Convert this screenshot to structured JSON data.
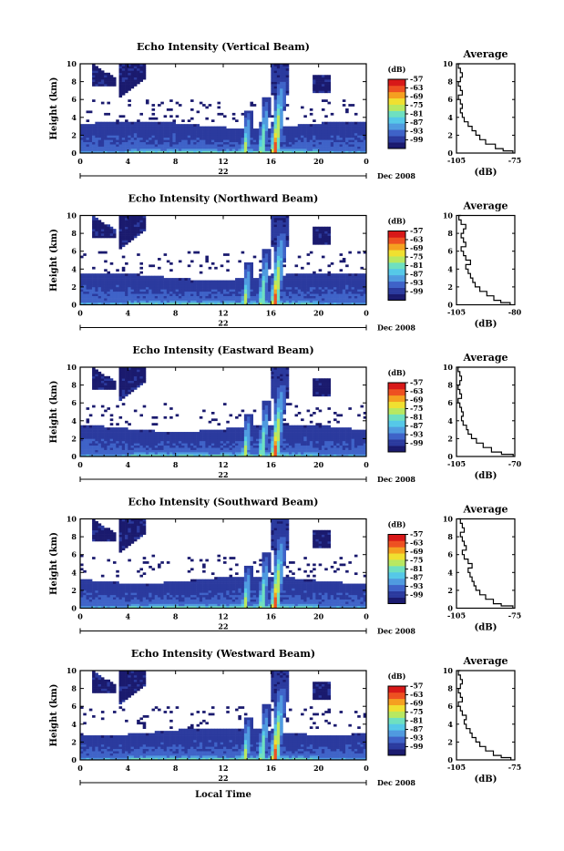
{
  "chart_data": [
    {
      "type": "heatmap",
      "title": "Echo Intensity (Vertical Beam)",
      "ylabel": "Height (km)",
      "ylim": [
        0,
        10
      ],
      "xlim": [
        0,
        24
      ],
      "x_ticks": [
        "0",
        "4",
        "8",
        "12",
        "16",
        "20",
        "0"
      ],
      "y_ticks": [
        "0",
        "2",
        "4",
        "6",
        "8",
        "10"
      ],
      "date_label": "22",
      "month_label": "Dec 2008",
      "colorbar": {
        "unit": "(dB)",
        "range": [
          -105,
          -57
        ],
        "ticks": [
          "-57",
          "-63",
          "-69",
          "-75",
          "-81",
          "-87",
          "-93",
          "-99"
        ]
      },
      "profile": {
        "title": "Average",
        "xlabel": "(dB)",
        "xticks": [
          "-105",
          "-75"
        ],
        "xlim": [
          -105,
          -75
        ],
        "yticks": [
          "0",
          "2",
          "4",
          "6",
          "8",
          "10"
        ],
        "heights": [
          0,
          0.25,
          0.5,
          1,
          1.5,
          2,
          2.5,
          3,
          3.5,
          4,
          4.5,
          5,
          5.5,
          6,
          6.5,
          7,
          7.5,
          8,
          8.5,
          9,
          9.5,
          10
        ],
        "values": [
          -76,
          -81,
          -85,
          -90,
          -93,
          -95,
          -97,
          -99,
          -101,
          -102,
          -103,
          -102,
          -103,
          -104,
          -102,
          -103,
          -104,
          -103,
          -102,
          -103,
          -104,
          -103
        ]
      }
    },
    {
      "type": "heatmap",
      "title": "Echo Intensity (Northward Beam)",
      "ylabel": "Height (km)",
      "ylim": [
        0,
        10
      ],
      "xlim": [
        0,
        24
      ],
      "x_ticks": [
        "0",
        "4",
        "8",
        "12",
        "16",
        "20",
        "0"
      ],
      "y_ticks": [
        "0",
        "2",
        "4",
        "6",
        "8",
        "10"
      ],
      "date_label": "22",
      "month_label": "Dec 2008",
      "colorbar": {
        "unit": "(dB)",
        "range": [
          -105,
          -57
        ],
        "ticks": [
          "-57",
          "-63",
          "-69",
          "-75",
          "-81",
          "-87",
          "-93",
          "-99"
        ]
      },
      "profile": {
        "title": "Average",
        "xlabel": "(dB)",
        "xticks": [
          "-105",
          "-80"
        ],
        "xlim": [
          -105,
          -80
        ],
        "yticks": [
          "0",
          "2",
          "4",
          "6",
          "8",
          "10"
        ],
        "heights": [
          0,
          0.25,
          0.5,
          1,
          1.5,
          2,
          2.5,
          3,
          3.5,
          4,
          4.5,
          5,
          5.5,
          6,
          6.5,
          7,
          7.5,
          8,
          8.5,
          9,
          9.5,
          10
        ],
        "values": [
          -82,
          -86,
          -89,
          -92,
          -95,
          -97,
          -98,
          -99,
          -100,
          -101,
          -99,
          -101,
          -102,
          -103,
          -101,
          -102,
          -103,
          -102,
          -101,
          -103,
          -104,
          -103
        ]
      }
    },
    {
      "type": "heatmap",
      "title": "Echo Intensity (Eastward Beam)",
      "ylabel": "Height (km)",
      "ylim": [
        0,
        10
      ],
      "xlim": [
        0,
        24
      ],
      "x_ticks": [
        "0",
        "4",
        "8",
        "12",
        "16",
        "20",
        "0"
      ],
      "y_ticks": [
        "0",
        "2",
        "4",
        "6",
        "8",
        "10"
      ],
      "date_label": "22",
      "month_label": "Dec 2008",
      "colorbar": {
        "unit": "(dB)",
        "range": [
          -105,
          -57
        ],
        "ticks": [
          "-57",
          "-63",
          "-69",
          "-75",
          "-81",
          "-87",
          "-93",
          "-99"
        ]
      },
      "profile": {
        "title": "Average",
        "xlabel": "(dB)",
        "xticks": [
          "-105",
          "-70"
        ],
        "xlim": [
          -105,
          -70
        ],
        "yticks": [
          "0",
          "2",
          "4",
          "6",
          "8",
          "10"
        ],
        "heights": [
          0,
          0.25,
          0.5,
          1,
          1.5,
          2,
          2.5,
          3,
          3.5,
          4,
          4.5,
          5,
          5.5,
          6,
          6.5,
          7,
          7.5,
          8,
          8.5,
          9,
          9.5,
          10
        ],
        "values": [
          -71,
          -78,
          -84,
          -89,
          -93,
          -96,
          -98,
          -99,
          -101,
          -102,
          -101,
          -102,
          -103,
          -104,
          -102,
          -103,
          -104,
          -103,
          -102,
          -103,
          -104,
          -103
        ]
      }
    },
    {
      "type": "heatmap",
      "title": "Echo Intensity (Southward Beam)",
      "ylabel": "Height (km)",
      "ylim": [
        0,
        10
      ],
      "xlim": [
        0,
        24
      ],
      "x_ticks": [
        "0",
        "4",
        "8",
        "12",
        "16",
        "20",
        "0"
      ],
      "y_ticks": [
        "0",
        "2",
        "4",
        "6",
        "8",
        "10"
      ],
      "date_label": "22",
      "month_label": "Dec 2008",
      "colorbar": {
        "unit": "(dB)",
        "range": [
          -105,
          -57
        ],
        "ticks": [
          "-57",
          "-63",
          "-69",
          "-75",
          "-81",
          "-87",
          "-93",
          "-99"
        ]
      },
      "profile": {
        "title": "Average",
        "xlabel": "(dB)",
        "xticks": [
          "-105",
          "-75"
        ],
        "xlim": [
          -105,
          -75
        ],
        "yticks": [
          "0",
          "2",
          "4",
          "6",
          "8",
          "10"
        ],
        "heights": [
          0,
          0.25,
          0.5,
          1,
          1.5,
          2,
          2.5,
          3,
          3.5,
          4,
          4.5,
          5,
          5.5,
          6,
          6.5,
          7,
          7.5,
          8,
          8.5,
          9,
          9.5,
          10
        ],
        "values": [
          -76,
          -82,
          -86,
          -90,
          -93,
          -95,
          -96,
          -97,
          -98,
          -99,
          -97,
          -99,
          -101,
          -102,
          -100,
          -101,
          -102,
          -103,
          -101,
          -102,
          -103,
          -104
        ]
      }
    },
    {
      "type": "heatmap",
      "title": "Echo Intensity (Westward Beam)",
      "ylabel": "Height (km)",
      "ylim": [
        0,
        10
      ],
      "xlim": [
        0,
        24
      ],
      "x_ticks": [
        "0",
        "4",
        "8",
        "12",
        "16",
        "20",
        "0"
      ],
      "y_ticks": [
        "0",
        "2",
        "4",
        "6",
        "8",
        "10"
      ],
      "date_label": "22",
      "month_label": "Dec 2008",
      "xlabel": "Local Time",
      "colorbar": {
        "unit": "(dB)",
        "range": [
          -105,
          -57
        ],
        "ticks": [
          "-57",
          "-63",
          "-69",
          "-75",
          "-81",
          "-87",
          "-93",
          "-99"
        ]
      },
      "profile": {
        "title": "Average",
        "xlabel": "(dB)",
        "xticks": [
          "-105",
          "-75"
        ],
        "xlim": [
          -105,
          -75
        ],
        "yticks": [
          "0",
          "2",
          "4",
          "6",
          "8",
          "10"
        ],
        "heights": [
          0,
          0.25,
          0.5,
          1,
          1.5,
          2,
          2.5,
          3,
          3.5,
          4,
          4.5,
          5,
          5.5,
          6,
          6.5,
          7,
          7.5,
          8,
          8.5,
          9,
          9.5,
          10
        ],
        "values": [
          -77,
          -82,
          -86,
          -90,
          -93,
          -95,
          -97,
          -98,
          -100,
          -101,
          -100,
          -102,
          -103,
          -104,
          -102,
          -103,
          -104,
          -103,
          -102,
          -103,
          -104,
          -103
        ]
      }
    }
  ],
  "colors": {
    "colormap": [
      "#1a1a6e",
      "#2b3a9e",
      "#3f63c8",
      "#4f9ae0",
      "#55c8e8",
      "#6fe0c0",
      "#b8e860",
      "#f0e030",
      "#f5a020",
      "#ee5020",
      "#d81818"
    ]
  }
}
